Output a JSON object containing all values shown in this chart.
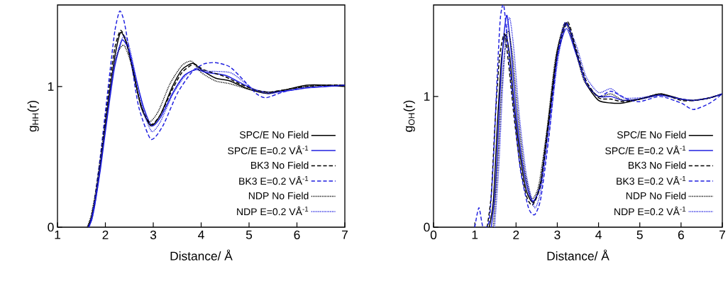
{
  "chart_data": [
    {
      "type": "line",
      "xlabel": "Distance/ Å",
      "ylabel": "g$_{HH}$(r)",
      "xlim": [
        1,
        7
      ],
      "ylim": [
        0,
        1.58
      ],
      "xticks": [
        1,
        2,
        3,
        4,
        5,
        6,
        7
      ],
      "yticks": [
        0,
        1
      ],
      "legend": "bottom right",
      "series": [
        {
          "name": "SPC/E No Field",
          "color": "#000000",
          "line_style": "solid",
          "x": [
            1.63,
            1.7,
            1.8,
            1.9,
            2.0,
            2.1,
            2.2,
            2.32,
            2.45,
            2.6,
            2.75,
            2.95,
            3.15,
            3.4,
            3.6,
            3.83,
            4.0,
            4.3,
            4.6,
            5.0,
            5.4,
            5.8,
            6.2,
            6.6,
            7.0
          ],
          "values": [
            0,
            0.06,
            0.22,
            0.45,
            0.72,
            0.98,
            1.22,
            1.385,
            1.3,
            1.08,
            0.85,
            0.72,
            0.8,
            1.0,
            1.12,
            1.166,
            1.12,
            1.06,
            1.04,
            0.98,
            0.95,
            0.98,
            1.01,
            1.01,
            1.0
          ]
        },
        {
          "name": "SPC/E E=0.2 VÅ$^{-1}$",
          "color": "#1f1fe0",
          "line_style": "solid",
          "x": [
            1.65,
            1.72,
            1.8,
            1.9,
            2.0,
            2.1,
            2.2,
            2.35,
            2.5,
            2.65,
            2.8,
            2.97,
            3.15,
            3.4,
            3.65,
            3.9,
            4.1,
            4.5,
            4.8,
            5.1,
            5.4,
            5.8,
            6.2,
            6.6,
            7.0
          ],
          "values": [
            0,
            0.06,
            0.2,
            0.42,
            0.68,
            0.93,
            1.15,
            1.33,
            1.25,
            1.04,
            0.85,
            0.72,
            0.78,
            0.95,
            1.08,
            1.12,
            1.1,
            1.08,
            1.03,
            0.98,
            0.96,
            0.97,
            0.99,
            1.0,
            1.01
          ]
        },
        {
          "name": "BK3 No Field",
          "color": "#000000",
          "line_style": "dashed",
          "x": [
            1.65,
            1.72,
            1.8,
            1.9,
            2.0,
            2.1,
            2.2,
            2.32,
            2.45,
            2.6,
            2.75,
            2.95,
            3.15,
            3.4,
            3.6,
            3.85,
            4.05,
            4.5,
            4.8,
            5.1,
            5.4,
            5.8,
            6.2,
            6.6,
            7.0
          ],
          "values": [
            0,
            0.08,
            0.25,
            0.5,
            0.78,
            1.05,
            1.28,
            1.4,
            1.3,
            1.07,
            0.86,
            0.73,
            0.8,
            0.98,
            1.1,
            1.16,
            1.12,
            1.07,
            1.02,
            0.98,
            0.96,
            0.98,
            1.0,
            1.01,
            1.01
          ]
        },
        {
          "name": "BK3 E=0.2 VÅ$^{-1}$",
          "color": "#1f1fe0",
          "line_style": "dashed",
          "x": [
            1.65,
            1.72,
            1.8,
            1.9,
            2.0,
            2.1,
            2.2,
            2.3,
            2.4,
            2.55,
            2.7,
            2.95,
            3.2,
            3.5,
            3.8,
            4.05,
            4.3,
            4.6,
            4.9,
            5.15,
            5.35,
            5.7,
            6.1,
            6.5,
            7.0
          ],
          "values": [
            0,
            0.08,
            0.25,
            0.52,
            0.82,
            1.12,
            1.4,
            1.537,
            1.45,
            1.15,
            0.85,
            0.625,
            0.72,
            0.95,
            1.1,
            1.16,
            1.17,
            1.14,
            1.04,
            0.95,
            0.92,
            0.96,
            0.99,
            1.0,
            1.01
          ]
        },
        {
          "name": "NDP No Field",
          "color": "#000000",
          "line_style": "dotted",
          "x": [
            1.62,
            1.7,
            1.8,
            1.9,
            2.0,
            2.1,
            2.2,
            2.3,
            2.4,
            2.55,
            2.7,
            2.9,
            3.1,
            3.35,
            3.6,
            3.8,
            4.0,
            4.3,
            4.6,
            5.0,
            5.4,
            5.8,
            6.2,
            6.6,
            7.0
          ],
          "values": [
            0,
            0.08,
            0.26,
            0.5,
            0.76,
            1.0,
            1.18,
            1.27,
            1.29,
            1.15,
            0.92,
            0.75,
            0.82,
            1.02,
            1.15,
            1.18,
            1.1,
            1.04,
            1.02,
            0.98,
            0.96,
            0.98,
            1.0,
            1.01,
            1.01
          ]
        },
        {
          "name": "NDP E=0.2 VÅ$^{-1}$",
          "color": "#1f1fe0",
          "line_style": "dotted",
          "x": [
            1.66,
            1.73,
            1.8,
            1.9,
            2.0,
            2.1,
            2.2,
            2.38,
            2.5,
            2.65,
            2.8,
            2.97,
            3.15,
            3.4,
            3.65,
            3.9,
            4.1,
            4.6,
            4.9,
            5.1,
            5.4,
            5.8,
            6.2,
            6.6,
            7.0
          ],
          "values": [
            0,
            0.07,
            0.2,
            0.44,
            0.7,
            0.96,
            1.18,
            1.36,
            1.28,
            1.05,
            0.82,
            0.68,
            0.75,
            0.94,
            1.07,
            1.13,
            1.11,
            1.1,
            1.03,
            0.98,
            0.95,
            0.97,
            0.99,
            1.0,
            1.01
          ]
        }
      ]
    },
    {
      "type": "line",
      "xlabel": "Distance/ Å",
      "ylabel": "g$_{OH}$(r)",
      "xlim": [
        0,
        7
      ],
      "ylim": [
        0,
        1.7
      ],
      "xticks": [
        0,
        1,
        2,
        3,
        4,
        5,
        6,
        7
      ],
      "yticks": [
        0,
        1
      ],
      "legend": "bottom right",
      "series": [
        {
          "name": "SPC/E No Field",
          "color": "#000000",
          "line_style": "solid",
          "x": [
            1.35,
            1.45,
            1.55,
            1.65,
            1.75,
            1.85,
            1.95,
            2.1,
            2.25,
            2.42,
            2.6,
            2.8,
            3.0,
            3.23,
            3.45,
            3.7,
            4.0,
            4.3,
            4.6,
            5.0,
            5.5,
            6.0,
            6.3,
            6.7,
            7.0
          ],
          "values": [
            0,
            0.2,
            0.8,
            1.3,
            1.47,
            1.3,
            0.95,
            0.55,
            0.28,
            0.19,
            0.35,
            0.85,
            1.35,
            1.565,
            1.35,
            1.1,
            0.97,
            0.95,
            0.95,
            0.98,
            1.02,
            0.98,
            0.97,
            0.99,
            1.02
          ]
        },
        {
          "name": "SPC/E E=0.2 VÅ$^{-1}$",
          "color": "#1f1fe0",
          "line_style": "solid",
          "x": [
            1.4,
            1.5,
            1.6,
            1.7,
            1.78,
            1.88,
            2.0,
            2.15,
            2.3,
            2.42,
            2.6,
            2.8,
            3.0,
            3.22,
            3.45,
            3.7,
            4.0,
            4.3,
            4.6,
            5.0,
            5.5,
            6.0,
            6.3,
            6.7,
            7.0
          ],
          "values": [
            0,
            0.3,
            0.95,
            1.45,
            1.62,
            1.35,
            0.9,
            0.5,
            0.27,
            0.2,
            0.33,
            0.8,
            1.3,
            1.52,
            1.33,
            1.1,
            1.0,
            1.0,
            0.97,
            0.98,
            1.01,
            0.98,
            0.97,
            0.99,
            1.02
          ]
        },
        {
          "name": "BK3 No Field",
          "color": "#000000",
          "line_style": "dashed",
          "x": [
            1.3,
            1.4,
            1.5,
            1.6,
            1.72,
            1.82,
            1.95,
            2.1,
            2.25,
            2.4,
            2.6,
            2.8,
            3.0,
            3.25,
            3.45,
            3.7,
            4.0,
            4.3,
            4.6,
            5.0,
            5.5,
            6.0,
            6.3,
            6.7,
            7.0
          ],
          "values": [
            0,
            0.25,
            0.85,
            1.3,
            1.48,
            1.25,
            0.85,
            0.47,
            0.24,
            0.17,
            0.33,
            0.82,
            1.32,
            1.57,
            1.37,
            1.12,
            0.99,
            0.98,
            0.96,
            0.98,
            1.02,
            0.97,
            0.97,
            0.99,
            1.02
          ]
        },
        {
          "name": "BK3 E=0.2 VÅ$^{-1}$",
          "color": "#1f1fe0",
          "line_style": "dashed",
          "x": [
            1.0,
            1.1,
            1.2,
            1.35,
            1.45,
            1.55,
            1.62,
            1.7,
            1.8,
            1.95,
            2.1,
            2.3,
            2.45,
            2.6,
            2.8,
            3.0,
            3.2,
            3.45,
            3.7,
            4.0,
            4.3,
            4.7,
            5.0,
            5.5,
            6.0,
            6.3,
            6.7,
            7.0
          ],
          "values": [
            0,
            0.15,
            0,
            0.05,
            0.5,
            1.2,
            1.6,
            1.7,
            1.4,
            0.9,
            0.45,
            0.15,
            0.095,
            0.22,
            0.7,
            1.3,
            1.57,
            1.35,
            1.1,
            1.0,
            1.04,
            0.98,
            0.96,
            1.0,
            0.95,
            0.9,
            0.95,
            1.02
          ]
        },
        {
          "name": "NDP No Field",
          "color": "#000000",
          "line_style": "dotted",
          "x": [
            1.45,
            1.55,
            1.65,
            1.75,
            1.82,
            1.92,
            2.05,
            2.2,
            2.38,
            2.55,
            2.75,
            2.95,
            3.18,
            3.4,
            3.65,
            4.0,
            4.3,
            4.6,
            5.0,
            5.5,
            6.0,
            6.3,
            6.7,
            7.0
          ],
          "values": [
            0,
            0.45,
            1.05,
            1.42,
            1.5,
            1.3,
            0.85,
            0.45,
            0.22,
            0.32,
            0.75,
            1.28,
            1.56,
            1.4,
            1.12,
            1.0,
            1.02,
            0.97,
            0.98,
            1.01,
            0.98,
            0.97,
            0.99,
            1.02
          ]
        },
        {
          "name": "NDP E=0.2 VÅ$^{-1}$",
          "color": "#1f1fe0",
          "line_style": "dotted",
          "x": [
            1.48,
            1.58,
            1.68,
            1.77,
            1.85,
            1.95,
            2.08,
            2.25,
            2.45,
            2.6,
            2.8,
            3.0,
            3.2,
            3.45,
            3.7,
            4.0,
            4.3,
            4.6,
            5.0,
            5.5,
            6.0,
            6.3,
            6.7,
            7.0
          ],
          "values": [
            0,
            0.45,
            1.1,
            1.5,
            1.6,
            1.35,
            0.85,
            0.4,
            0.15,
            0.28,
            0.72,
            1.25,
            1.55,
            1.4,
            1.15,
            1.03,
            1.06,
            0.99,
            0.99,
            1.01,
            0.98,
            0.97,
            0.99,
            1.02
          ]
        }
      ]
    }
  ]
}
